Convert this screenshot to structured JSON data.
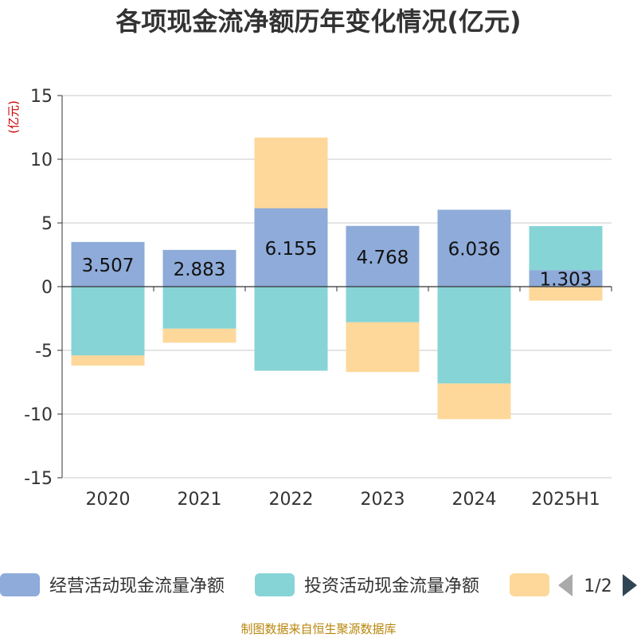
{
  "chart_data": {
    "type": "bar",
    "stacked": true,
    "title": "各项现金流净额历年变化情况(亿元)",
    "unit_label": "(亿元)",
    "categories": [
      "2020",
      "2021",
      "2022",
      "2023",
      "2024",
      "2025H1"
    ],
    "ylim": [
      -15,
      15
    ],
    "yticks": [
      15,
      10,
      5,
      0,
      -5,
      -10,
      -15
    ],
    "grid": true,
    "series": [
      {
        "name": "经营活动现金流量净额",
        "color": "#8eabd9",
        "values": [
          3.507,
          2.883,
          6.155,
          4.768,
          6.036,
          1.303
        ],
        "show_labels": true
      },
      {
        "name": "投资活动现金流量净额",
        "color": "#86d4d6",
        "values": [
          -5.4,
          -3.3,
          -6.6,
          -2.8,
          -7.6,
          3.45
        ],
        "show_labels": false
      },
      {
        "name": "",
        "color": "#fed89a",
        "values": [
          -0.8,
          -1.1,
          5.55,
          -3.9,
          -2.8,
          -1.1
        ],
        "show_labels": false
      }
    ],
    "legend": {
      "position": "bottom",
      "page": "1/2"
    }
  },
  "source_text": "制图数据来自恒生聚源数据库"
}
